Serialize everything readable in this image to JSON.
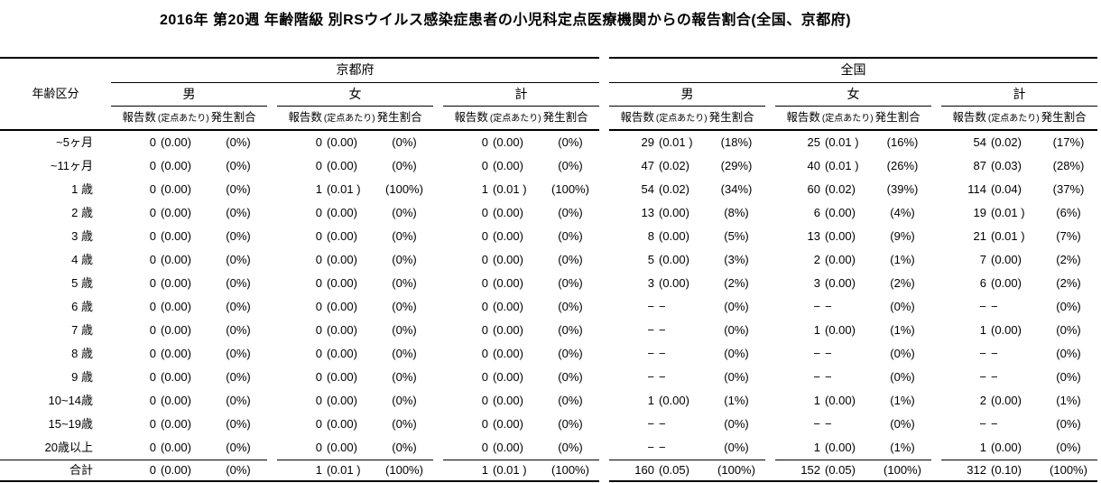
{
  "title": "2016年 第20週 年齢階級 別RSウイルス感染症患者の小児科定点医療機関からの報告割合(全国、京都府)",
  "table": {
    "age_column_header": "年齢区分",
    "region_headers": [
      "京都府",
      "全国"
    ],
    "sex_headers": [
      "男",
      "女",
      "計"
    ],
    "measure_header": {
      "report_count": "報告数",
      "per_sentinel": "(定点あたり)",
      "incidence_ratio": "発生割合"
    },
    "rows": [
      {
        "age": "~5ヶ月",
        "cells": [
          [
            "0",
            "(0.00)",
            "(0%)"
          ],
          [
            "0",
            "(0.00)",
            "(0%)"
          ],
          [
            "0",
            "(0.00)",
            "(0%)"
          ],
          [
            "29",
            "(0.01 )",
            "(18%)"
          ],
          [
            "25",
            "(0.01 )",
            "(16%)"
          ],
          [
            "54",
            "(0.02)",
            "(17%)"
          ]
        ]
      },
      {
        "age": "~11ヶ月",
        "cells": [
          [
            "0",
            "(0.00)",
            "(0%)"
          ],
          [
            "0",
            "(0.00)",
            "(0%)"
          ],
          [
            "0",
            "(0.00)",
            "(0%)"
          ],
          [
            "47",
            "(0.02)",
            "(29%)"
          ],
          [
            "40",
            "(0.01 )",
            "(26%)"
          ],
          [
            "87",
            "(0.03)",
            "(28%)"
          ]
        ]
      },
      {
        "age": "1 歳",
        "cells": [
          [
            "0",
            "(0.00)",
            "(0%)"
          ],
          [
            "1",
            "(0.01 )",
            "(100%)"
          ],
          [
            "1",
            "(0.01 )",
            "(100%)"
          ],
          [
            "54",
            "(0.02)",
            "(34%)"
          ],
          [
            "60",
            "(0.02)",
            "(39%)"
          ],
          [
            "114",
            "(0.04)",
            "(37%)"
          ]
        ]
      },
      {
        "age": "2 歳",
        "cells": [
          [
            "0",
            "(0.00)",
            "(0%)"
          ],
          [
            "0",
            "(0.00)",
            "(0%)"
          ],
          [
            "0",
            "(0.00)",
            "(0%)"
          ],
          [
            "13",
            "(0.00)",
            "(8%)"
          ],
          [
            "6",
            "(0.00)",
            "(4%)"
          ],
          [
            "19",
            "(0.01 )",
            "(6%)"
          ]
        ]
      },
      {
        "age": "3 歳",
        "cells": [
          [
            "0",
            "(0.00)",
            "(0%)"
          ],
          [
            "0",
            "(0.00)",
            "(0%)"
          ],
          [
            "0",
            "(0.00)",
            "(0%)"
          ],
          [
            "8",
            "(0.00)",
            "(5%)"
          ],
          [
            "13",
            "(0.00)",
            "(9%)"
          ],
          [
            "21",
            "(0.01 )",
            "(7%)"
          ]
        ]
      },
      {
        "age": "4 歳",
        "cells": [
          [
            "0",
            "(0.00)",
            "(0%)"
          ],
          [
            "0",
            "(0.00)",
            "(0%)"
          ],
          [
            "0",
            "(0.00)",
            "(0%)"
          ],
          [
            "5",
            "(0.00)",
            "(3%)"
          ],
          [
            "2",
            "(0.00)",
            "(1%)"
          ],
          [
            "7",
            "(0.00)",
            "(2%)"
          ]
        ]
      },
      {
        "age": "5 歳",
        "cells": [
          [
            "0",
            "(0.00)",
            "(0%)"
          ],
          [
            "0",
            "(0.00)",
            "(0%)"
          ],
          [
            "0",
            "(0.00)",
            "(0%)"
          ],
          [
            "3",
            "(0.00)",
            "(2%)"
          ],
          [
            "3",
            "(0.00)",
            "(2%)"
          ],
          [
            "6",
            "(0.00)",
            "(2%)"
          ]
        ]
      },
      {
        "age": "6 歳",
        "cells": [
          [
            "0",
            "(0.00)",
            "(0%)"
          ],
          [
            "0",
            "(0.00)",
            "(0%)"
          ],
          [
            "0",
            "(0.00)",
            "(0%)"
          ],
          [
            "−",
            "−",
            "(0%)"
          ],
          [
            "−",
            "−",
            "(0%)"
          ],
          [
            "−",
            "−",
            "(0%)"
          ]
        ]
      },
      {
        "age": "7 歳",
        "cells": [
          [
            "0",
            "(0.00)",
            "(0%)"
          ],
          [
            "0",
            "(0.00)",
            "(0%)"
          ],
          [
            "0",
            "(0.00)",
            "(0%)"
          ],
          [
            "−",
            "−",
            "(0%)"
          ],
          [
            "1",
            "(0.00)",
            "(1%)"
          ],
          [
            "1",
            "(0.00)",
            "(0%)"
          ]
        ]
      },
      {
        "age": "8 歳",
        "cells": [
          [
            "0",
            "(0.00)",
            "(0%)"
          ],
          [
            "0",
            "(0.00)",
            "(0%)"
          ],
          [
            "0",
            "(0.00)",
            "(0%)"
          ],
          [
            "−",
            "−",
            "(0%)"
          ],
          [
            "−",
            "−",
            "(0%)"
          ],
          [
            "−",
            "−",
            "(0%)"
          ]
        ]
      },
      {
        "age": "9 歳",
        "cells": [
          [
            "0",
            "(0.00)",
            "(0%)"
          ],
          [
            "0",
            "(0.00)",
            "(0%)"
          ],
          [
            "0",
            "(0.00)",
            "(0%)"
          ],
          [
            "−",
            "−",
            "(0%)"
          ],
          [
            "−",
            "−",
            "(0%)"
          ],
          [
            "−",
            "−",
            "(0%)"
          ]
        ]
      },
      {
        "age": "10~14歳",
        "cells": [
          [
            "0",
            "(0.00)",
            "(0%)"
          ],
          [
            "0",
            "(0.00)",
            "(0%)"
          ],
          [
            "0",
            "(0.00)",
            "(0%)"
          ],
          [
            "1",
            "(0.00)",
            "(1%)"
          ],
          [
            "1",
            "(0.00)",
            "(1%)"
          ],
          [
            "2",
            "(0.00)",
            "(1%)"
          ]
        ]
      },
      {
        "age": "15~19歳",
        "cells": [
          [
            "0",
            "(0.00)",
            "(0%)"
          ],
          [
            "0",
            "(0.00)",
            "(0%)"
          ],
          [
            "0",
            "(0.00)",
            "(0%)"
          ],
          [
            "−",
            "−",
            "(0%)"
          ],
          [
            "−",
            "−",
            "(0%)"
          ],
          [
            "−",
            "−",
            "(0%)"
          ]
        ]
      },
      {
        "age": "20歳以上",
        "cells": [
          [
            "0",
            "(0.00)",
            "(0%)"
          ],
          [
            "0",
            "(0.00)",
            "(0%)"
          ],
          [
            "0",
            "(0.00)",
            "(0%)"
          ],
          [
            "−",
            "−",
            "(0%)"
          ],
          [
            "1",
            "(0.00)",
            "(1%)"
          ],
          [
            "1",
            "(0.00)",
            "(0%)"
          ]
        ]
      }
    ],
    "total_row": {
      "age": "合計",
      "cells": [
        [
          "0",
          "(0.00)",
          "(0%)"
        ],
        [
          "1",
          "(0.01 )",
          "(100%)"
        ],
        [
          "1",
          "(0.01 )",
          "(100%)"
        ],
        [
          "160",
          "(0.05)",
          "(100%)"
        ],
        [
          "152",
          "(0.05)",
          "(100%)"
        ],
        [
          "312",
          "(0.10)",
          "(100%)"
        ]
      ]
    }
  }
}
